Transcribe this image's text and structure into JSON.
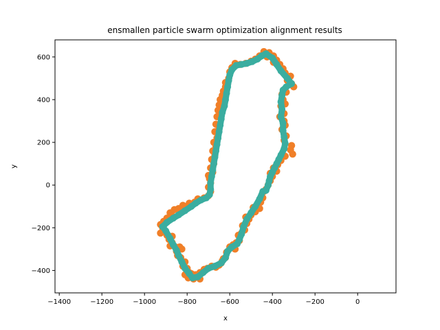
{
  "chart_data": {
    "type": "scatter",
    "title": "ensmallen particle swarm optimization alignment results",
    "xlabel": "x",
    "ylabel": "y",
    "xlim": [
      -1420,
      180
    ],
    "ylim": [
      -505,
      680
    ],
    "xticks": [
      -1400,
      -1200,
      -1000,
      -800,
      -600,
      -400,
      -200,
      0
    ],
    "yticks": [
      -400,
      -200,
      0,
      200,
      400,
      600
    ],
    "grid": false,
    "colors": {
      "scatter": "#f07f28",
      "aligned": "#3aada0",
      "frame": "#000000"
    },
    "series": [
      {
        "role": "scatter",
        "values": [
          [
            -440,
            625
          ],
          [
            -415,
            620
          ],
          [
            -395,
            605
          ],
          [
            -460,
            605
          ],
          [
            -480,
            590
          ],
          [
            -380,
            585
          ],
          [
            -500,
            580
          ],
          [
            -365,
            565
          ],
          [
            -525,
            570
          ],
          [
            -350,
            545
          ],
          [
            -550,
            565
          ],
          [
            -575,
            570
          ],
          [
            -590,
            550
          ],
          [
            -340,
            525
          ],
          [
            -600,
            530
          ],
          [
            -315,
            510
          ],
          [
            -330,
            490
          ],
          [
            -300,
            460
          ],
          [
            -310,
            475
          ],
          [
            -605,
            500
          ],
          [
            -620,
            480
          ],
          [
            -620,
            460
          ],
          [
            -610,
            475
          ],
          [
            -630,
            440
          ],
          [
            -335,
            435
          ],
          [
            -355,
            425
          ],
          [
            -635,
            420
          ],
          [
            -350,
            400
          ],
          [
            -645,
            400
          ],
          [
            -340,
            380
          ],
          [
            -360,
            370
          ],
          [
            -650,
            375
          ],
          [
            -655,
            350
          ],
          [
            -345,
            335
          ],
          [
            -640,
            340
          ],
          [
            -365,
            320
          ],
          [
            -660,
            320
          ],
          [
            -345,
            300
          ],
          [
            -665,
            285
          ],
          [
            -340,
            280
          ],
          [
            -650,
            270
          ],
          [
            -355,
            260
          ],
          [
            -670,
            250
          ],
          [
            -335,
            230
          ],
          [
            -660,
            220
          ],
          [
            -345,
            210
          ],
          [
            -675,
            200
          ],
          [
            -310,
            185
          ],
          [
            -665,
            180
          ],
          [
            -315,
            165
          ],
          [
            -680,
            160
          ],
          [
            -305,
            145
          ],
          [
            -670,
            140
          ],
          [
            -340,
            135
          ],
          [
            -685,
            120
          ],
          [
            -360,
            115
          ],
          [
            -675,
            100
          ],
          [
            -375,
            95
          ],
          [
            -690,
            80
          ],
          [
            -395,
            80
          ],
          [
            -680,
            60
          ],
          [
            -380,
            65
          ],
          [
            -700,
            45
          ],
          [
            -410,
            55
          ],
          [
            -695,
            30
          ],
          [
            -400,
            40
          ],
          [
            -690,
            10
          ],
          [
            -410,
            20
          ],
          [
            -700,
            -10
          ],
          [
            -420,
            0
          ],
          [
            -690,
            -30
          ],
          [
            -430,
            -20
          ],
          [
            -700,
            -50
          ],
          [
            -440,
            -30
          ],
          [
            -720,
            -60
          ],
          [
            -445,
            -60
          ],
          [
            -750,
            -65
          ],
          [
            -455,
            -80
          ],
          [
            -765,
            -80
          ],
          [
            -470,
            -95
          ],
          [
            -790,
            -85
          ],
          [
            -460,
            -110
          ],
          [
            -800,
            -100
          ],
          [
            -490,
            -105
          ],
          [
            -820,
            -95
          ],
          [
            -480,
            -125
          ],
          [
            -840,
            -110
          ],
          [
            -500,
            -140
          ],
          [
            -860,
            -115
          ],
          [
            -510,
            -160
          ],
          [
            -880,
            -130
          ],
          [
            -525,
            -150
          ],
          [
            -870,
            -145
          ],
          [
            -520,
            -180
          ],
          [
            -895,
            -155
          ],
          [
            -540,
            -190
          ],
          [
            -910,
            -170
          ],
          [
            -530,
            -210
          ],
          [
            -925,
            -185
          ],
          [
            -545,
            -225
          ],
          [
            -915,
            -200
          ],
          [
            -560,
            -235
          ],
          [
            -905,
            -215
          ],
          [
            -555,
            -260
          ],
          [
            -925,
            -225
          ],
          [
            -570,
            -270
          ],
          [
            -895,
            -235
          ],
          [
            -585,
            -280
          ],
          [
            -870,
            -240
          ],
          [
            -575,
            -300
          ],
          [
            -885,
            -255
          ],
          [
            -600,
            -290
          ],
          [
            -870,
            -270
          ],
          [
            -615,
            -315
          ],
          [
            -880,
            -285
          ],
          [
            -620,
            -340
          ],
          [
            -855,
            -290
          ],
          [
            -635,
            -355
          ],
          [
            -835,
            -290
          ],
          [
            -650,
            -375
          ],
          [
            -850,
            -310
          ],
          [
            -665,
            -385
          ],
          [
            -825,
            -300
          ],
          [
            -685,
            -380
          ],
          [
            -845,
            -330
          ],
          [
            -705,
            -390
          ],
          [
            -830,
            -340
          ],
          [
            -720,
            -395
          ],
          [
            -810,
            -360
          ],
          [
            -740,
            -410
          ],
          [
            -820,
            -380
          ],
          [
            -755,
            -425
          ],
          [
            -800,
            -390
          ],
          [
            -770,
            -440
          ],
          [
            -790,
            -410
          ],
          [
            -740,
            -440
          ],
          [
            -795,
            -435
          ],
          [
            -760,
            -420
          ],
          [
            -810,
            -420
          ],
          [
            -780,
            -415
          ],
          [
            -640,
            -365
          ],
          [
            -630,
            -345
          ],
          [
            -425,
            600
          ],
          [
            -395,
            575
          ]
        ]
      },
      {
        "role": "aligned",
        "values": [
          [
            -430,
            615
          ],
          [
            -400,
            595
          ],
          [
            -380,
            565
          ],
          [
            -360,
            535
          ],
          [
            -330,
            500
          ],
          [
            -310,
            475
          ],
          [
            -335,
            460
          ],
          [
            -350,
            445
          ],
          [
            -355,
            420
          ],
          [
            -360,
            390
          ],
          [
            -355,
            355
          ],
          [
            -360,
            320
          ],
          [
            -350,
            290
          ],
          [
            -350,
            255
          ],
          [
            -345,
            225
          ],
          [
            -340,
            195
          ],
          [
            -345,
            170
          ],
          [
            -360,
            140
          ],
          [
            -370,
            120
          ],
          [
            -380,
            100
          ],
          [
            -390,
            80
          ],
          [
            -400,
            60
          ],
          [
            -410,
            40
          ],
          [
            -415,
            20
          ],
          [
            -420,
            0
          ],
          [
            -430,
            -25
          ],
          [
            -445,
            -30
          ],
          [
            -460,
            -65
          ],
          [
            -480,
            -100
          ],
          [
            -500,
            -130
          ],
          [
            -520,
            -160
          ],
          [
            -535,
            -195
          ],
          [
            -545,
            -230
          ],
          [
            -555,
            -255
          ],
          [
            -565,
            -275
          ],
          [
            -590,
            -290
          ],
          [
            -610,
            -310
          ],
          [
            -620,
            -340
          ],
          [
            -640,
            -365
          ],
          [
            -670,
            -380
          ],
          [
            -700,
            -390
          ],
          [
            -725,
            -410
          ],
          [
            -750,
            -430
          ],
          [
            -775,
            -435
          ],
          [
            -790,
            -415
          ],
          [
            -810,
            -390
          ],
          [
            -825,
            -360
          ],
          [
            -840,
            -330
          ],
          [
            -850,
            -305
          ],
          [
            -865,
            -280
          ],
          [
            -880,
            -250
          ],
          [
            -900,
            -215
          ],
          [
            -915,
            -195
          ],
          [
            -895,
            -175
          ],
          [
            -865,
            -155
          ],
          [
            -840,
            -140
          ],
          [
            -810,
            -120
          ],
          [
            -780,
            -100
          ],
          [
            -760,
            -85
          ],
          [
            -735,
            -70
          ],
          [
            -710,
            -60
          ],
          [
            -695,
            -45
          ],
          [
            -690,
            -20
          ],
          [
            -690,
            10
          ],
          [
            -685,
            40
          ],
          [
            -680,
            70
          ],
          [
            -675,
            100
          ],
          [
            -670,
            130
          ],
          [
            -665,
            160
          ],
          [
            -660,
            190
          ],
          [
            -655,
            220
          ],
          [
            -650,
            250
          ],
          [
            -645,
            280
          ],
          [
            -640,
            310
          ],
          [
            -635,
            340
          ],
          [
            -625,
            370
          ],
          [
            -620,
            400
          ],
          [
            -615,
            430
          ],
          [
            -610,
            460
          ],
          [
            -605,
            490
          ],
          [
            -600,
            515
          ],
          [
            -590,
            540
          ],
          [
            -570,
            560
          ],
          [
            -545,
            565
          ],
          [
            -520,
            570
          ],
          [
            -495,
            578
          ],
          [
            -470,
            590
          ],
          [
            -450,
            605
          ],
          [
            -430,
            615
          ]
        ]
      }
    ]
  }
}
